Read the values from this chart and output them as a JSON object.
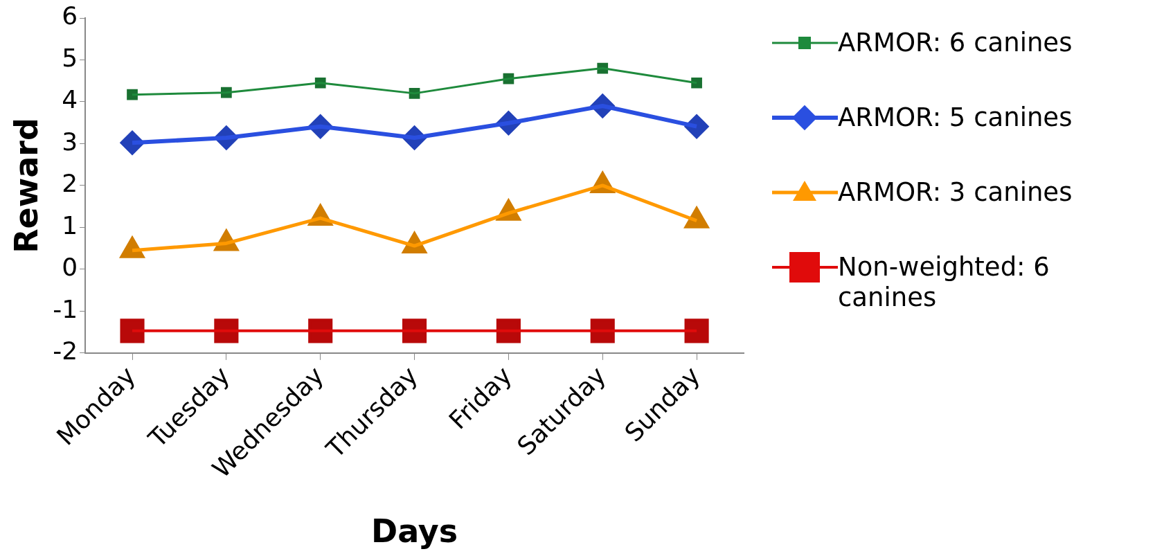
{
  "chart_data": {
    "type": "line",
    "xlabel": "Days",
    "ylabel": "Reward",
    "categories": [
      "Monday",
      "Tuesday",
      "Wednesday",
      "Thursday",
      "Friday",
      "Saturday",
      "Sunday"
    ],
    "series": [
      {
        "name": "ARMOR:  6 canines",
        "color": "#1e8a3c",
        "marker": "square",
        "values": [
          4.17,
          4.22,
          4.45,
          4.2,
          4.55,
          4.8,
          4.45
        ]
      },
      {
        "name": "ARMOR:  5 canines",
        "color": "#2a4fe0",
        "marker": "diamond",
        "values": [
          3.02,
          3.14,
          3.41,
          3.14,
          3.49,
          3.9,
          3.41
        ]
      },
      {
        "name": "ARMOR:  3 canines",
        "color": "#ff9900",
        "marker": "triangle",
        "values": [
          0.45,
          0.62,
          1.22,
          0.56,
          1.34,
          2.0,
          1.16
        ]
      },
      {
        "name": "Non-weighted:  6 canines",
        "color": "#e00b0b",
        "marker": "square",
        "values": [
          -1.47,
          -1.47,
          -1.47,
          -1.47,
          -1.47,
          -1.47,
          -1.47
        ]
      }
    ],
    "ylim": [
      -2,
      6
    ],
    "yticks": [
      -2,
      -1,
      0,
      1,
      2,
      3,
      4,
      5,
      6
    ],
    "grid": false,
    "legend": "right"
  }
}
